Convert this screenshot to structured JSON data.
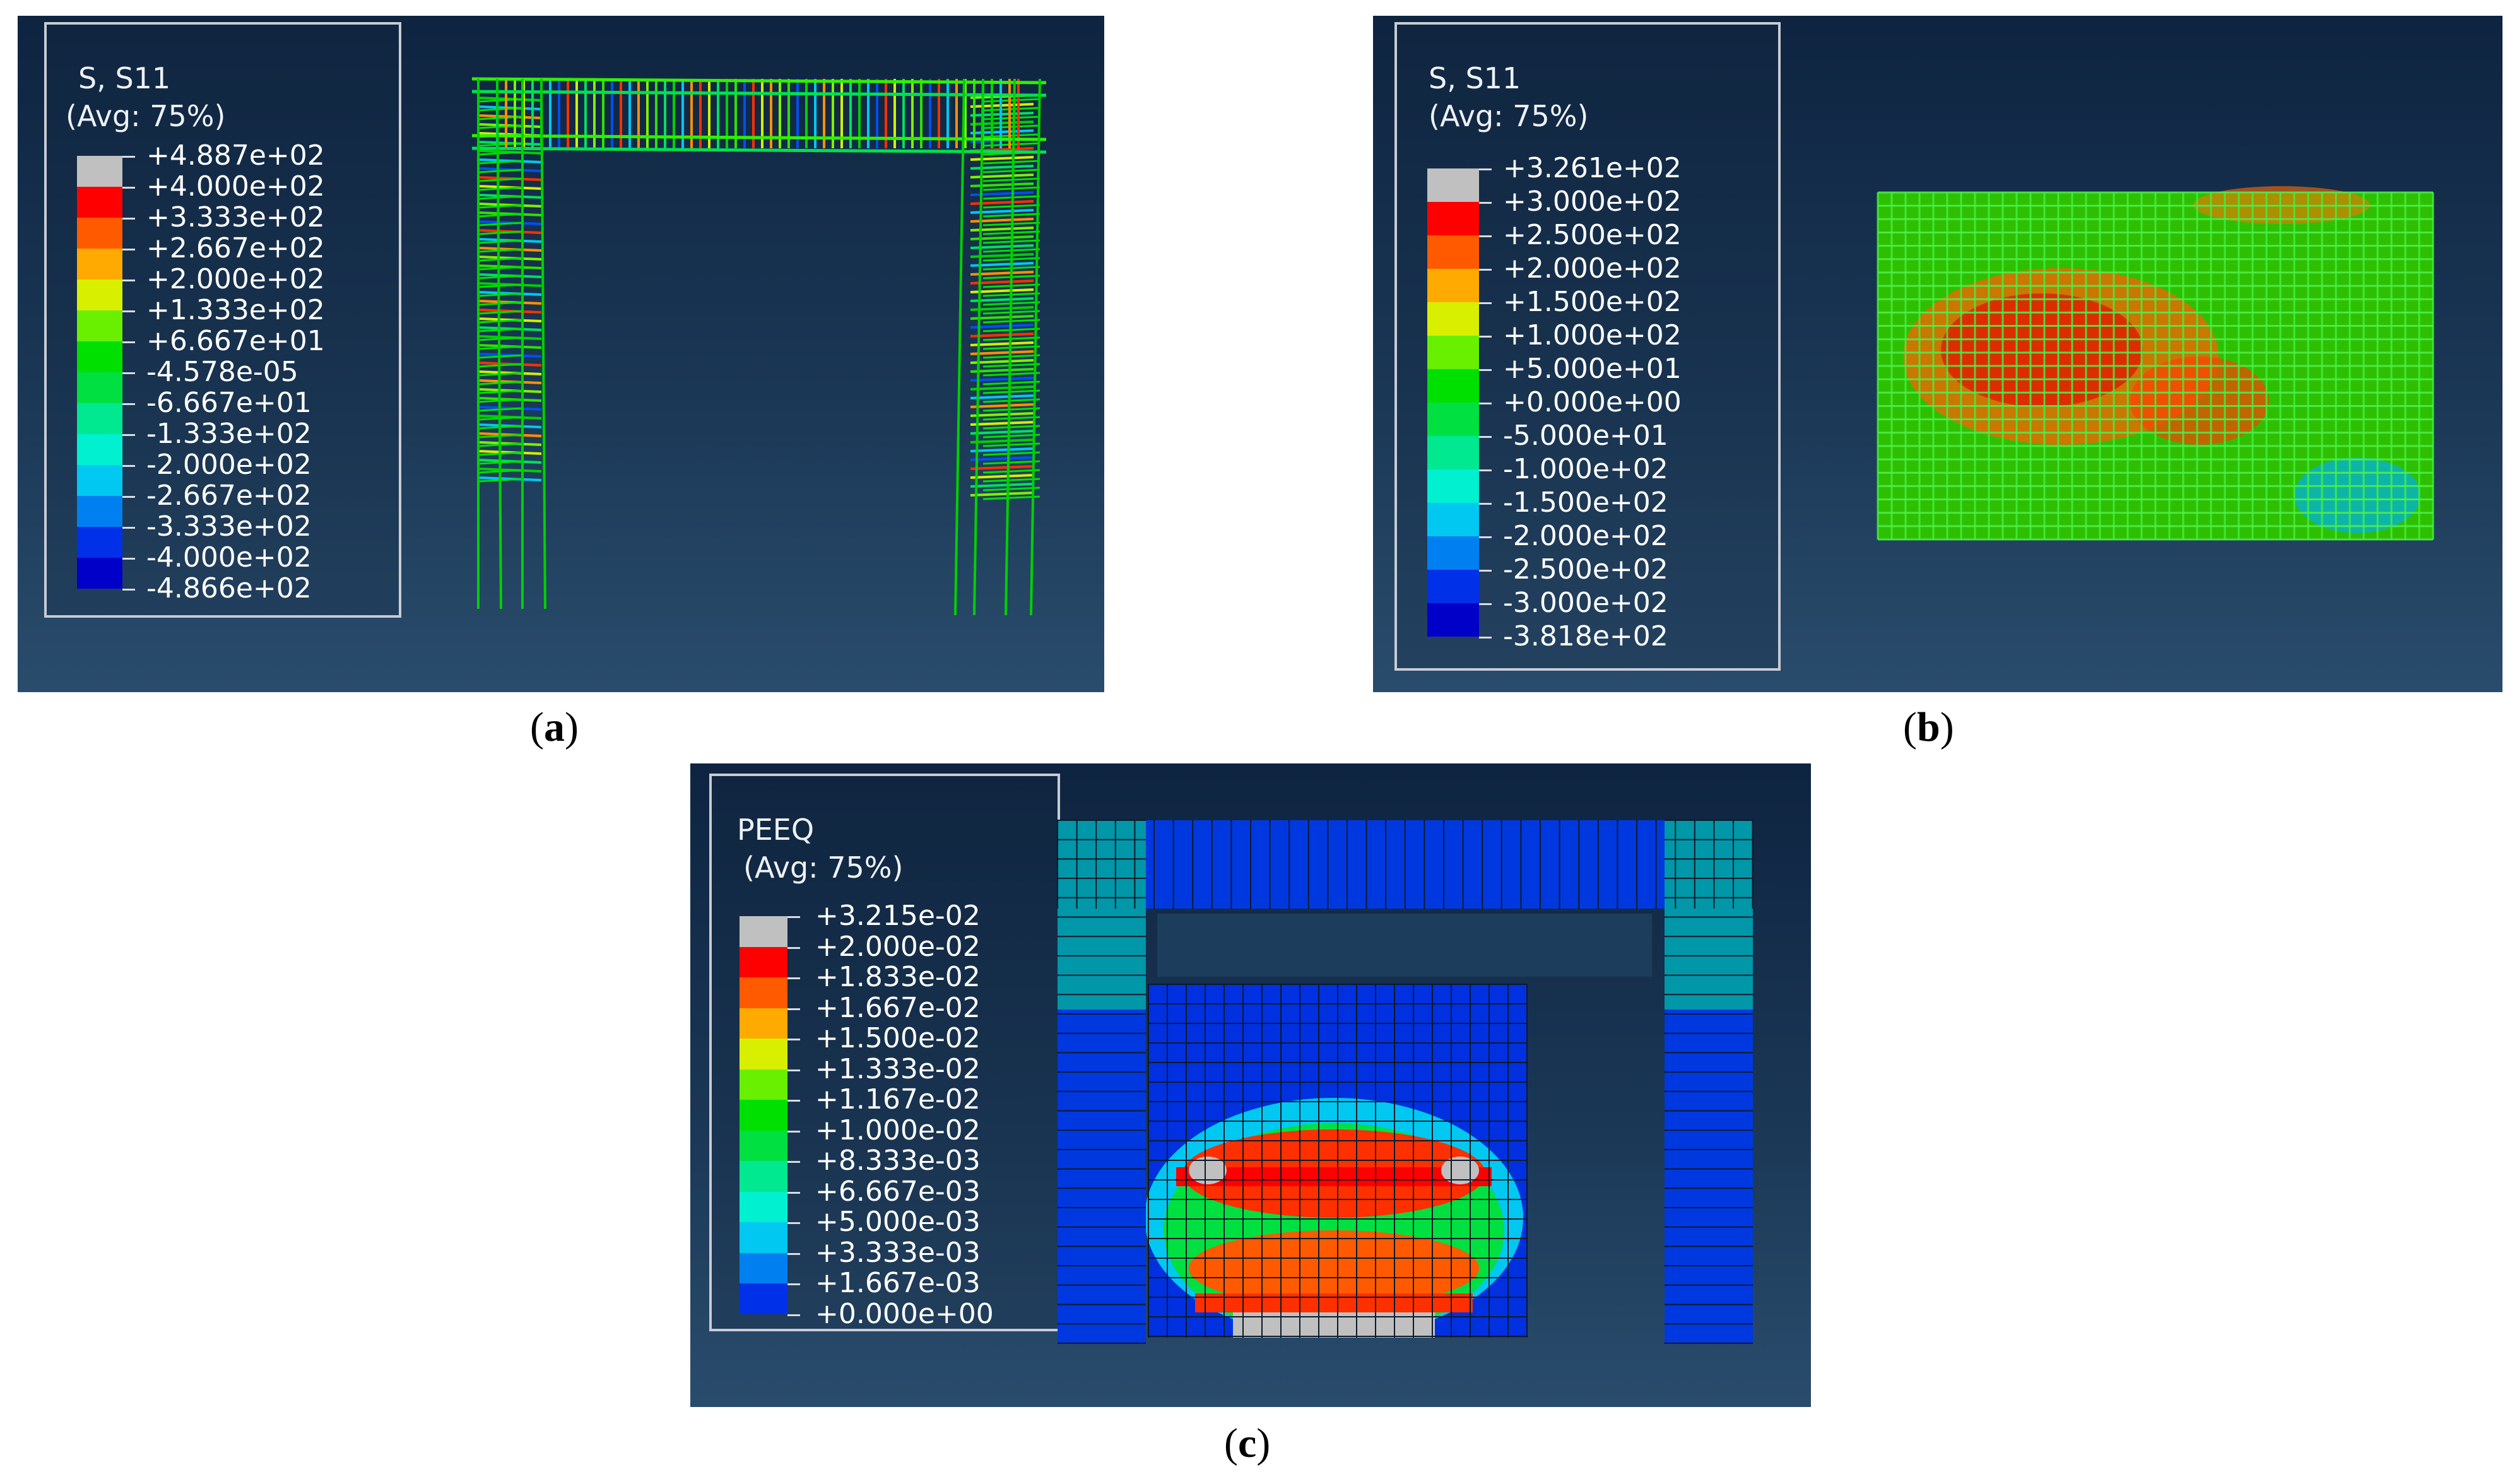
{
  "panels": [
    {
      "id": "a",
      "caption_letter": "a",
      "legend": {
        "title_line1": "S, S11",
        "title_line2": "(Avg: 75%)",
        "labels": [
          "+4.887e+02",
          "+4.000e+02",
          "+3.333e+02",
          "+2.667e+02",
          "+2.000e+02",
          "+1.333e+02",
          "+6.667e+01",
          "-4.578e-05",
          "-6.667e+01",
          "-1.333e+02",
          "-2.000e+02",
          "-2.667e+02",
          "-3.333e+02",
          "-4.000e+02",
          "-4.866e+02"
        ]
      }
    },
    {
      "id": "b",
      "caption_letter": "b",
      "legend": {
        "title_line1": "S, S11",
        "title_line2": "(Avg: 75%)",
        "labels": [
          "+3.261e+02",
          "+3.000e+02",
          "+2.500e+02",
          "+2.000e+02",
          "+1.500e+02",
          "+1.000e+02",
          "+5.000e+01",
          "+0.000e+00",
          "-5.000e+01",
          "-1.000e+02",
          "-1.500e+02",
          "-2.000e+02",
          "-2.500e+02",
          "-3.000e+02",
          "-3.818e+02"
        ]
      }
    },
    {
      "id": "c",
      "caption_letter": "c",
      "legend": {
        "title_line1": "PEEQ",
        "title_line2": "(Avg: 75%)",
        "labels": [
          "+3.215e-02",
          "+2.000e-02",
          "+1.833e-02",
          "+1.667e-02",
          "+1.500e-02",
          "+1.333e-02",
          "+1.167e-02",
          "+1.000e-02",
          "+8.333e-03",
          "+6.667e-03",
          "+5.000e-03",
          "+3.333e-03",
          "+1.667e-03",
          "+0.000e+00"
        ]
      }
    }
  ],
  "colors": {
    "contour": [
      "#c0c0c0",
      "#ff0000",
      "#ff5a00",
      "#ffaa00",
      "#d8f000",
      "#68f000",
      "#00e000",
      "#00e040",
      "#00e890",
      "#00f0d0",
      "#00c8f0",
      "#0080f0",
      "#0030e8",
      "#0000c8",
      "#303030"
    ],
    "contour_c": [
      "#c0c0c0",
      "#ff0000",
      "#ff5a00",
      "#ffaa00",
      "#d8f000",
      "#68f000",
      "#00e000",
      "#00e040",
      "#00e890",
      "#00f0d0",
      "#00c8f0",
      "#0080f0",
      "#0030e8",
      "#0000c8"
    ]
  }
}
